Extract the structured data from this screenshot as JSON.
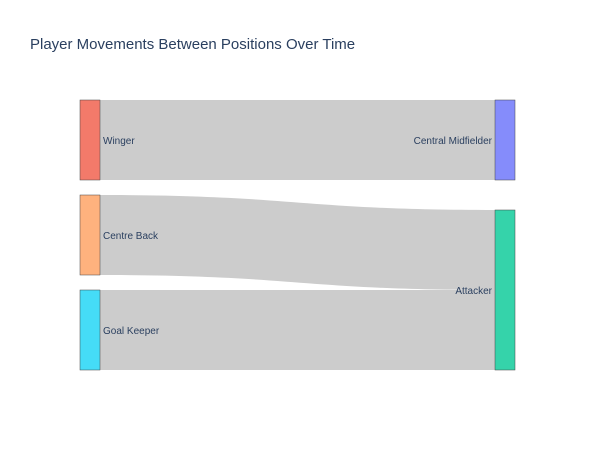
{
  "chart_data": {
    "type": "sankey",
    "title": "Player Movements Between Positions Over Time",
    "nodes": [
      {
        "id": "winger",
        "label": "Winger",
        "color": "#F37A6A",
        "column": 0
      },
      {
        "id": "centre_back",
        "label": "Centre Back",
        "color": "#FEB27E",
        "column": 0
      },
      {
        "id": "goal_keeper",
        "label": "Goal Keeper",
        "color": "#45DCF7",
        "column": 0
      },
      {
        "id": "central_midfielder",
        "label": "Central Midfielder",
        "color": "#858CFB",
        "column": 1
      },
      {
        "id": "attacker",
        "label": "Attacker",
        "color": "#35D3AA",
        "column": 1
      }
    ],
    "links": [
      {
        "source": "winger",
        "target": "central_midfielder",
        "value": 1
      },
      {
        "source": "centre_back",
        "target": "attacker",
        "value": 1
      },
      {
        "source": "goal_keeper",
        "target": "attacker",
        "value": 1
      }
    ],
    "link_color": "#cccccc"
  }
}
